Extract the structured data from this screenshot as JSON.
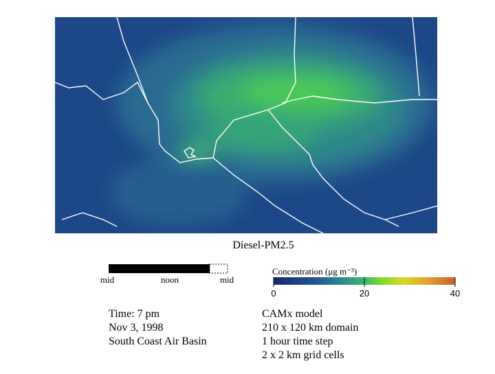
{
  "title": "Diesel-PM2.5",
  "time_bar": {
    "labels": [
      "mid",
      "noon",
      "mid"
    ]
  },
  "colorbar": {
    "label": "Concentration (μg m⁻³)",
    "lim": [
      0,
      40
    ],
    "ticks": [
      0,
      20,
      40
    ]
  },
  "info_left": [
    "Time: 7 pm",
    "Nov 3, 1998",
    "South Coast Air Basin"
  ],
  "info_right": [
    "CAMx model",
    "210 x 120 km domain",
    "1 hour time step",
    "2 x 2 km grid cells"
  ]
}
